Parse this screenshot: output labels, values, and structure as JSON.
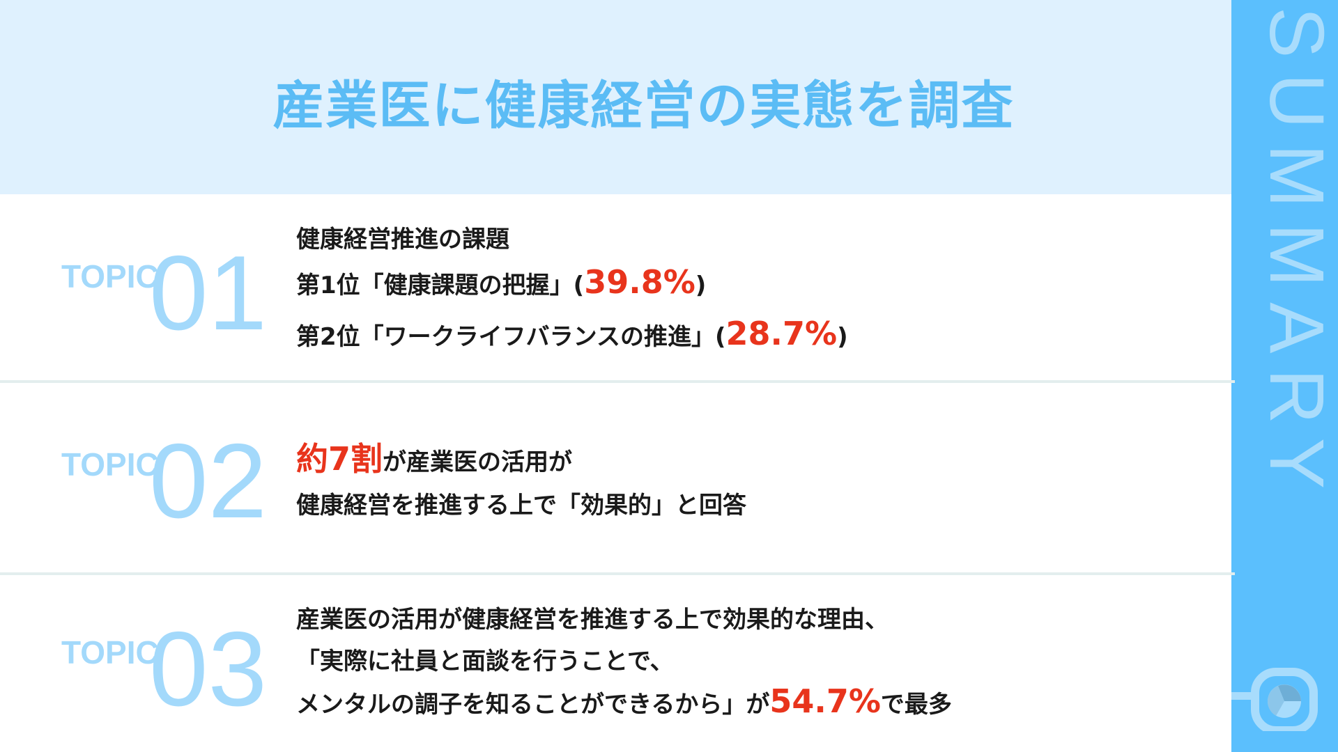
{
  "header": {
    "title": "産業医に健康経営の実態を調査"
  },
  "sidebar": {
    "label": "SUMMARY",
    "icon": "chart-in-rounded-square-icon"
  },
  "colors": {
    "accent": "#5bbffd",
    "header_bg": "#dff1fe",
    "highlight": "#e8341c",
    "topic": "#a3d9fb"
  },
  "topics": [
    {
      "label": "TOPIC",
      "number": "01",
      "lines": [
        {
          "text": "健康経営推進の課題"
        },
        {
          "pre": "第1位「健康課題の把握」(",
          "value": "39.8%",
          "post": ")"
        },
        {
          "pre": "第2位「ワークライフバランスの推進」(",
          "value": "28.7%",
          "post": ")"
        }
      ]
    },
    {
      "label": "TOPIC",
      "number": "02",
      "lines": [
        {
          "value": "約7割",
          "post": "が産業医の活用が"
        },
        {
          "text": "健康経営を推進する上で「効果的」と回答"
        }
      ]
    },
    {
      "label": "TOPIC",
      "number": "03",
      "lines": [
        {
          "text": "産業医の活用が健康経営を推進する上で効果的な理由、"
        },
        {
          "text": "「実際に社員と面談を行うことで、"
        },
        {
          "pre": "メンタルの調子を知ることができるから」が",
          "value": "54.7%",
          "post": "で最多"
        }
      ]
    }
  ]
}
